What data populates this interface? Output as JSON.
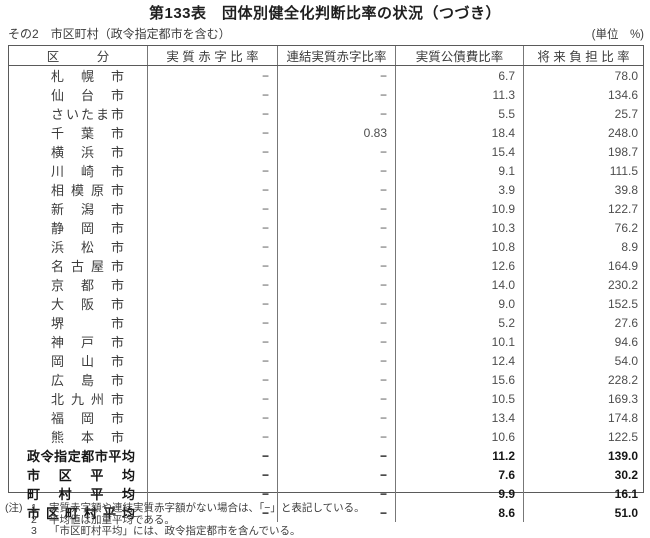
{
  "page": {
    "title": "第133表　団体別健全化判断比率の状況（つづき）",
    "subtitle": "その2　市区町村（政令指定都市を含む）",
    "unit_label": "(単位　%)"
  },
  "table": {
    "columns": [
      "区　　　分",
      "実 質 赤 字 比 率",
      "連結実質赤字比率",
      "実質公債費比率",
      "将 来 負 担 比 率"
    ],
    "column_keys": [
      "kubun",
      "jisshitsu_akaji_hiritsu",
      "renketsu_jisshitsu_akaji_hiritsu",
      "jisshitsu_kosaihi_hiritsu",
      "shorai_futan_hiritsu"
    ],
    "no_value_mark": "−",
    "rows": [
      {
        "label": "札幌市",
        "values": [
          "−",
          "−",
          "6.7",
          "78.0"
        ],
        "summary": false
      },
      {
        "label": "仙台市",
        "values": [
          "−",
          "−",
          "11.3",
          "134.6"
        ],
        "summary": false
      },
      {
        "label": "さいたま市",
        "values": [
          "−",
          "−",
          "5.5",
          "25.7"
        ],
        "summary": false
      },
      {
        "label": "千葉市",
        "values": [
          "−",
          "0.83",
          "18.4",
          "248.0"
        ],
        "summary": false
      },
      {
        "label": "横浜市",
        "values": [
          "−",
          "−",
          "15.4",
          "198.7"
        ],
        "summary": false
      },
      {
        "label": "川崎市",
        "values": [
          "−",
          "−",
          "9.1",
          "111.5"
        ],
        "summary": false
      },
      {
        "label": "相模原市",
        "values": [
          "−",
          "−",
          "3.9",
          "39.8"
        ],
        "summary": false
      },
      {
        "label": "新潟市",
        "values": [
          "−",
          "−",
          "10.9",
          "122.7"
        ],
        "summary": false
      },
      {
        "label": "静岡市",
        "values": [
          "−",
          "−",
          "10.3",
          "76.2"
        ],
        "summary": false
      },
      {
        "label": "浜松市",
        "values": [
          "−",
          "−",
          "10.8",
          "8.9"
        ],
        "summary": false
      },
      {
        "label": "名古屋市",
        "values": [
          "−",
          "−",
          "12.6",
          "164.9"
        ],
        "summary": false
      },
      {
        "label": "京都市",
        "values": [
          "−",
          "−",
          "14.0",
          "230.2"
        ],
        "summary": false
      },
      {
        "label": "大阪市",
        "values": [
          "−",
          "−",
          "9.0",
          "152.5"
        ],
        "summary": false
      },
      {
        "label": "堺市",
        "values": [
          "−",
          "−",
          "5.2",
          "27.6"
        ],
        "summary": false
      },
      {
        "label": "神戸市",
        "values": [
          "−",
          "−",
          "10.1",
          "94.6"
        ],
        "summary": false
      },
      {
        "label": "岡山市",
        "values": [
          "−",
          "−",
          "12.4",
          "54.0"
        ],
        "summary": false
      },
      {
        "label": "広島市",
        "values": [
          "−",
          "−",
          "15.6",
          "228.2"
        ],
        "summary": false
      },
      {
        "label": "北九州市",
        "values": [
          "−",
          "−",
          "10.5",
          "169.3"
        ],
        "summary": false
      },
      {
        "label": "福岡市",
        "values": [
          "−",
          "−",
          "13.4",
          "174.8"
        ],
        "summary": false
      },
      {
        "label": "熊本市",
        "values": [
          "−",
          "−",
          "10.6",
          "122.5"
        ],
        "summary": false
      },
      {
        "label": "政令指定都市平均",
        "values": [
          "−",
          "−",
          "11.2",
          "139.0"
        ],
        "summary": true
      },
      {
        "label": "市区平均",
        "values": [
          "−",
          "−",
          "7.6",
          "30.2"
        ],
        "summary": true
      },
      {
        "label": "町村平均",
        "values": [
          "−",
          "−",
          "9.9",
          "16.1"
        ],
        "summary": true
      },
      {
        "label": "市区町村平均",
        "values": [
          "−",
          "−",
          "8.6",
          "51.0"
        ],
        "summary": true
      }
    ]
  },
  "notes": {
    "prefix": "(注)",
    "items": [
      {
        "num": "1",
        "text": "実質赤字額や連結実質赤字額がない場合は、「−」と表記している。"
      },
      {
        "num": "2",
        "text": "平均値は加重平均である。"
      },
      {
        "num": "3",
        "text": "「市区町村平均」には、政令指定都市を含んでいる。"
      }
    ]
  }
}
